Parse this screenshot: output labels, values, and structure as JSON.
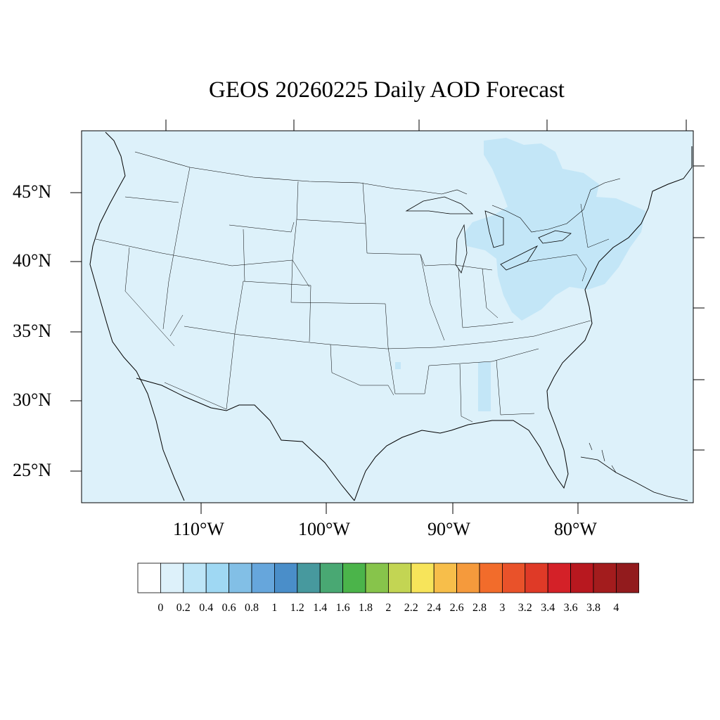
{
  "title": "GEOS 20260225 Daily AOD Forecast",
  "lat_labels": [
    "45°N",
    "40°N",
    "35°N",
    "30°N",
    "25°N"
  ],
  "lon_labels": [
    "110°W",
    "100°W",
    "90°W",
    "80°W"
  ],
  "map": {
    "ocean_color": "#ddf1fa",
    "land_color": "#ddf1fa",
    "elevated_aod_color": "#c3e6f7",
    "boundary_color": "#000000"
  },
  "colorbar": {
    "labels": [
      "0",
      "0.2",
      "0.4",
      "0.6",
      "0.8",
      "1",
      "1.2",
      "1.4",
      "1.6",
      "1.8",
      "2",
      "2.2",
      "2.4",
      "2.6",
      "2.8",
      "3",
      "3.2",
      "3.4",
      "3.6",
      "3.8",
      "4"
    ],
    "colors": [
      "#ffffff",
      "#ddf1fa",
      "#bde5f7",
      "#9fd8f3",
      "#82bfe6",
      "#66a6dc",
      "#4a8ec9",
      "#47999e",
      "#49a873",
      "#4bb44a",
      "#87c44b",
      "#c3d553",
      "#f7e45a",
      "#f7be4a",
      "#f59a3c",
      "#f26c2b",
      "#e9522a",
      "#df3a27",
      "#d42128",
      "#b8181f",
      "#a31c1d",
      "#921b1d"
    ]
  }
}
